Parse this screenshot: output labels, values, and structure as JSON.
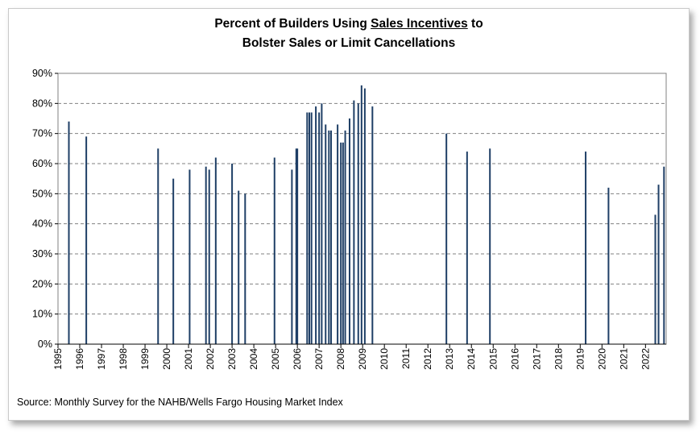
{
  "title": {
    "prefix": "Percent of Builders Using ",
    "underlined": "Sales Incentives",
    "suffix": " to",
    "line2": "Bolster Sales or Limit Cancellations"
  },
  "source": "Source: Monthly Survey for the NAHB/Wells Fargo Housing Market Index",
  "colors": {
    "bar": "#1f3f66",
    "grid": "#808080",
    "plot_bg": "#ffffff"
  },
  "chart_data": {
    "type": "bar",
    "x_range": [
      1995.0,
      2022.95
    ],
    "ylim": [
      0,
      90
    ],
    "grid": true,
    "y_ticks": [
      "0%",
      "10%",
      "20%",
      "30%",
      "40%",
      "50%",
      "60%",
      "70%",
      "80%",
      "90%"
    ],
    "x_ticks": [
      "1995",
      "1996",
      "1997",
      "1998",
      "1999",
      "2000",
      "2001",
      "2002",
      "2003",
      "2004",
      "2005",
      "2006",
      "2007",
      "2008",
      "2009",
      "2010",
      "2011",
      "2012",
      "2013",
      "2014",
      "2015",
      "2016",
      "2017",
      "2018",
      "2019",
      "2020",
      "2021",
      "2022"
    ],
    "bars": [
      {
        "x": 1995.5,
        "value": 74
      },
      {
        "x": 1996.3,
        "value": 69
      },
      {
        "x": 1999.6,
        "value": 65
      },
      {
        "x": 2000.3,
        "value": 55
      },
      {
        "x": 2001.05,
        "value": 58
      },
      {
        "x": 2001.8,
        "value": 59
      },
      {
        "x": 2001.95,
        "value": 58
      },
      {
        "x": 2002.25,
        "value": 62
      },
      {
        "x": 2003.0,
        "value": 60
      },
      {
        "x": 2003.3,
        "value": 51
      },
      {
        "x": 2003.6,
        "value": 50
      },
      {
        "x": 2004.95,
        "value": 62
      },
      {
        "x": 2005.75,
        "value": 58
      },
      {
        "x": 2005.95,
        "value": 65
      },
      {
        "x": 2006.0,
        "value": 65
      },
      {
        "x": 2006.45,
        "value": 77
      },
      {
        "x": 2006.55,
        "value": 77
      },
      {
        "x": 2006.65,
        "value": 77
      },
      {
        "x": 2006.85,
        "value": 79
      },
      {
        "x": 2007.0,
        "value": 77
      },
      {
        "x": 2007.12,
        "value": 80
      },
      {
        "x": 2007.3,
        "value": 73
      },
      {
        "x": 2007.45,
        "value": 71
      },
      {
        "x": 2007.55,
        "value": 71
      },
      {
        "x": 2007.85,
        "value": 73
      },
      {
        "x": 2008.0,
        "value": 67
      },
      {
        "x": 2008.1,
        "value": 67
      },
      {
        "x": 2008.2,
        "value": 71
      },
      {
        "x": 2008.4,
        "value": 75
      },
      {
        "x": 2008.6,
        "value": 81
      },
      {
        "x": 2008.8,
        "value": 80
      },
      {
        "x": 2008.95,
        "value": 86
      },
      {
        "x": 2009.1,
        "value": 85
      },
      {
        "x": 2009.45,
        "value": 79
      },
      {
        "x": 2012.85,
        "value": 70
      },
      {
        "x": 2013.8,
        "value": 64
      },
      {
        "x": 2014.85,
        "value": 65
      },
      {
        "x": 2019.25,
        "value": 64
      },
      {
        "x": 2020.3,
        "value": 52
      },
      {
        "x": 2022.45,
        "value": 43
      },
      {
        "x": 2022.6,
        "value": 53
      },
      {
        "x": 2022.85,
        "value": 59
      }
    ]
  }
}
